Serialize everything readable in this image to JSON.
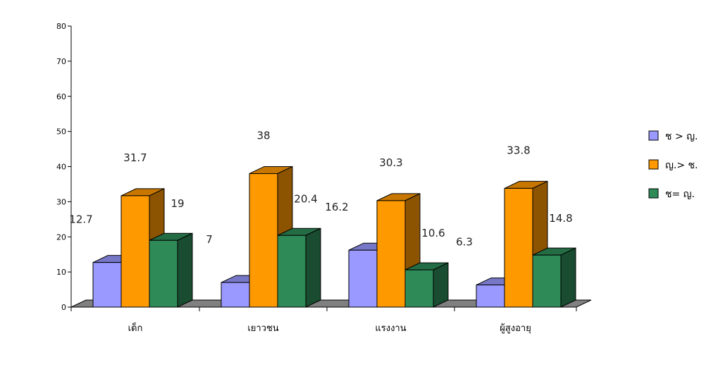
{
  "chart_data": {
    "type": "bar",
    "title": "",
    "xlabel": "",
    "ylabel": "",
    "ylim": [
      0,
      80
    ],
    "yticks": [
      0,
      10,
      20,
      30,
      40,
      50,
      60,
      70,
      80
    ],
    "categories": [
      "เด็ก",
      "เยาวชน",
      "แรงงาน",
      "ผู้สูงอายุ"
    ],
    "series": [
      {
        "name": "ช > ญ.",
        "values": [
          12.7,
          7,
          16.2,
          6.3
        ],
        "color": "#9999ff"
      },
      {
        "name": "ญ.> ช.",
        "values": [
          31.7,
          38,
          30.3,
          33.8
        ],
        "color": "#ff9900"
      },
      {
        "name": "ช= ญ.",
        "values": [
          19,
          20.4,
          10.6,
          14.8
        ],
        "color": "#2e8b57"
      }
    ],
    "data_labels": [
      [
        "12.7",
        "7",
        "16.2",
        "6.3"
      ],
      [
        "31.7",
        "38",
        "30.3",
        "33.8"
      ],
      [
        "19",
        "20.4",
        "10.6",
        "14.8"
      ]
    ],
    "grid": false,
    "legend_position": "right",
    "style": "3d-column"
  }
}
